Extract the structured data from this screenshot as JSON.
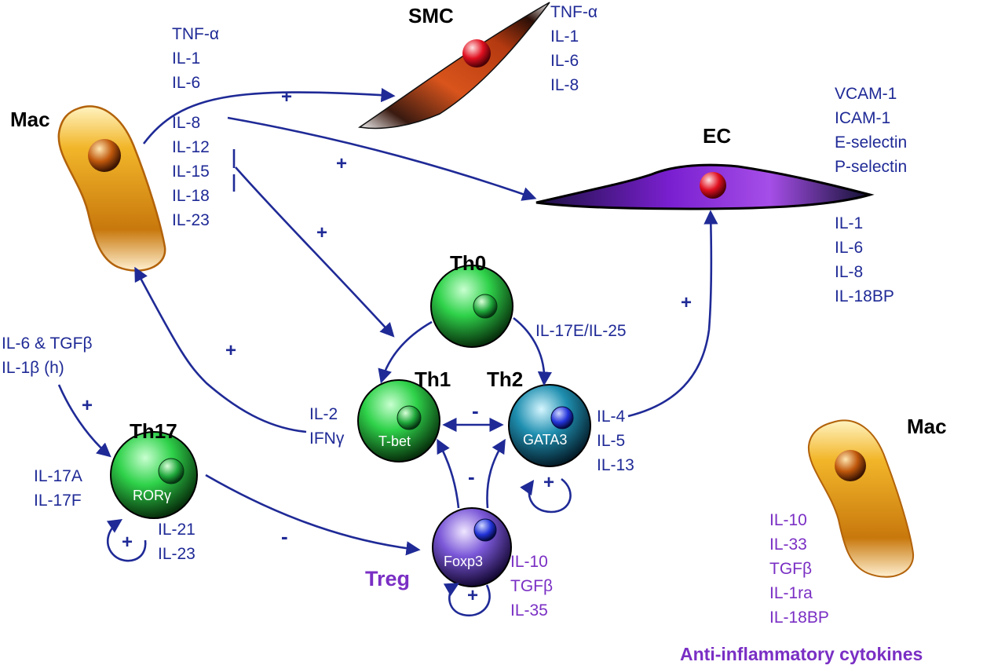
{
  "colors": {
    "arrow": "#1f2a96",
    "text_blue": "#1f2a96",
    "text_purple": "#7a2fc4",
    "cell_green": "#2fd24a",
    "cell_purple": "#7b58d8",
    "cell_teal": "#1f8fb0",
    "smc_orange": "#d9541c",
    "ec_violet": "#7a1fd0",
    "mac_gold": "#e8a61a"
  },
  "cells": {
    "mac_left": "Mac",
    "mac_right": "Mac",
    "smc": "SMC",
    "ec": "EC",
    "th0": "Th0",
    "th1": "Th1",
    "th2": "Th2",
    "th17": "Th17",
    "treg": "Treg"
  },
  "transcription_factors": {
    "th1": "T-bet",
    "th2": "GATA3",
    "th17": "RORγ",
    "treg": "Foxp3"
  },
  "cytokines": {
    "mac_to_smc": [
      "TNF-α",
      "IL-1",
      "IL-6"
    ],
    "mac_other": [
      "IL-8",
      "IL-12",
      "IL-15",
      "IL-18",
      "IL-23"
    ],
    "smc": [
      "TNF-α",
      "IL-1",
      "IL-6",
      "IL-8"
    ],
    "ec_adhesion": [
      "VCAM-1",
      "ICAM-1",
      "E-selectin",
      "P-selectin"
    ],
    "ec_cytokines": [
      "IL-1",
      "IL-6",
      "IL-8",
      "IL-18BP"
    ],
    "th0_to_th2": "IL-17E/IL-25",
    "th1": [
      "IL-2",
      "IFNγ"
    ],
    "th2": [
      "IL-4",
      "IL-5",
      "IL-13"
    ],
    "th17_inducers": [
      "IL-6 & TGFβ",
      "IL-1β (h)"
    ],
    "th17_left": [
      "IL-17A",
      "IL-17F"
    ],
    "th17_right": [
      "IL-21",
      "IL-23"
    ],
    "treg": [
      "IL-10",
      "TGFβ",
      "IL-35"
    ],
    "mac_right": [
      "IL-10",
      "IL-33",
      "TGFβ",
      "IL-1ra",
      "IL-18BP"
    ]
  },
  "signs": {
    "mac_smc": "+",
    "mac_ec": "+",
    "mac_th1": "+",
    "th1_mac": "+",
    "th2_ec": "+",
    "inducers_th17": "+",
    "th1_th2": "-",
    "treg_th": "-",
    "th17_treg": "-",
    "th2_loop": "+",
    "th17_loop": "+",
    "treg_loop": "+"
  },
  "footer": "Anti-inflammatory cytokines"
}
